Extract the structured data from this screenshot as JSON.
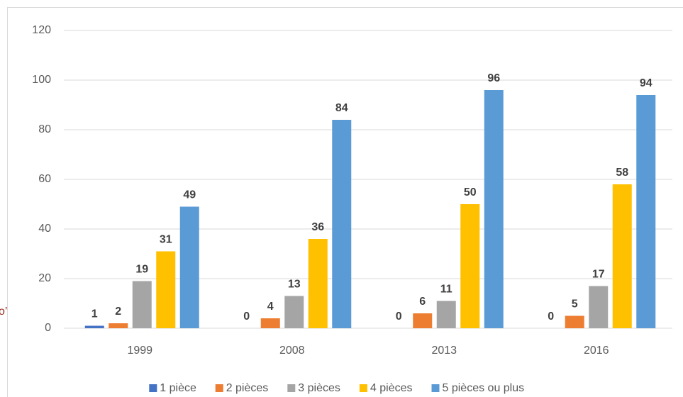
{
  "chart_data": {
    "type": "bar",
    "annotation": "o’",
    "categories": [
      "1999",
      "2008",
      "2013",
      "2016"
    ],
    "series": [
      {
        "name": "1 pièce",
        "color": "#4472c4",
        "values": [
          1,
          0,
          0,
          0
        ]
      },
      {
        "name": "2 pièces",
        "color": "#ed7d31",
        "values": [
          2,
          4,
          6,
          5
        ]
      },
      {
        "name": "3 pièces",
        "color": "#a5a5a5",
        "values": [
          19,
          13,
          11,
          17
        ]
      },
      {
        "name": "4 pièces",
        "color": "#ffc000",
        "values": [
          31,
          36,
          50,
          58
        ]
      },
      {
        "name": "5 pièces ou plus",
        "color": "#5b9bd5",
        "values": [
          49,
          84,
          96,
          94
        ]
      }
    ],
    "ylim": [
      0,
      120
    ],
    "yticks": [
      0,
      20,
      40,
      60,
      80,
      100,
      120
    ],
    "grid": true,
    "legend": "bottom"
  }
}
